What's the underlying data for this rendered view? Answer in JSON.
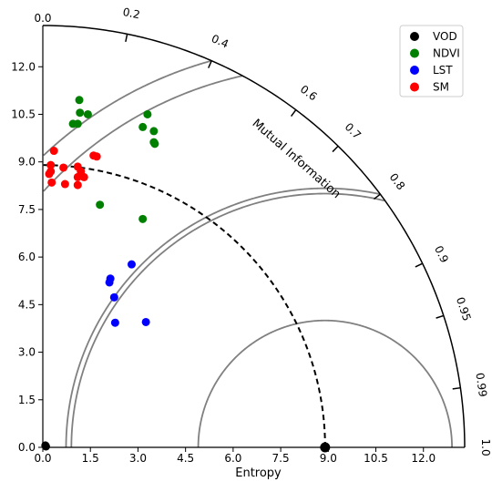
{
  "chart_data": {
    "type": "scatter",
    "subtype": "taylor-diagram",
    "xlabel": "Entropy",
    "arc_label": "Mutual Information",
    "xticks": [
      "0.0",
      "1.5",
      "3.0",
      "4.5",
      "6.0",
      "7.5",
      "9.0",
      "10.5",
      "12.0"
    ],
    "yticks": [
      "0.0",
      "1.5",
      "3.0",
      "4.5",
      "6.0",
      "7.5",
      "9.0",
      "10.5",
      "12.0"
    ],
    "xlim": [
      0,
      13.3
    ],
    "ylim": [
      0,
      13.3
    ],
    "correlation_ticks": [
      "0.0",
      "0.2",
      "0.4",
      "0.6",
      "0.7",
      "0.8",
      "0.9",
      "0.95",
      "0.99",
      "1.0"
    ],
    "reference": {
      "name": "reference-point",
      "x": 8.9,
      "y": 0.0,
      "color": "#000000"
    },
    "reference_arc_radius": 8.9,
    "rms_arc_radii": [
      4.0,
      8.0,
      12.0
    ],
    "correlation_lines": [
      0.4,
      0.8
    ],
    "legend_position": "top-right",
    "series": [
      {
        "name": "VOD",
        "color": "#000000",
        "points": [
          [
            0.08,
            0.06
          ],
          [
            0.1,
            0.03
          ]
        ]
      },
      {
        "name": "NDVI",
        "color": "#008000",
        "points": [
          [
            1.15,
            10.95
          ],
          [
            1.17,
            10.55
          ],
          [
            1.42,
            10.5
          ],
          [
            0.95,
            10.2
          ],
          [
            1.1,
            10.2
          ],
          [
            3.3,
            10.5
          ],
          [
            3.15,
            10.1
          ],
          [
            3.5,
            9.97
          ],
          [
            3.5,
            9.62
          ],
          [
            3.53,
            9.57
          ],
          [
            1.8,
            7.65
          ],
          [
            3.15,
            7.2
          ]
        ]
      },
      {
        "name": "LST",
        "color": "#0000ff",
        "points": [
          [
            2.8,
            5.77
          ],
          [
            2.13,
            5.32
          ],
          [
            2.1,
            5.2
          ],
          [
            2.25,
            4.73
          ],
          [
            2.28,
            3.93
          ],
          [
            3.25,
            3.95
          ]
        ]
      },
      {
        "name": "SM",
        "color": "#ff0000",
        "points": [
          [
            0.35,
            9.35
          ],
          [
            1.6,
            9.2
          ],
          [
            1.7,
            9.17
          ],
          [
            0.25,
            8.9
          ],
          [
            0.65,
            8.82
          ],
          [
            1.1,
            8.85
          ],
          [
            0.25,
            8.7
          ],
          [
            0.2,
            8.62
          ],
          [
            1.2,
            8.7
          ],
          [
            1.1,
            8.52
          ],
          [
            1.3,
            8.52
          ],
          [
            0.28,
            8.35
          ],
          [
            0.7,
            8.3
          ],
          [
            1.1,
            8.27
          ]
        ]
      }
    ]
  }
}
